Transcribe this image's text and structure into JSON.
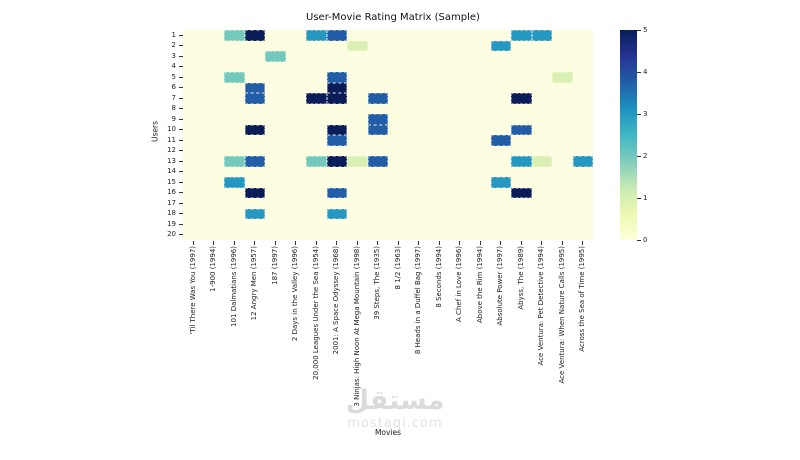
{
  "title": "User-Movie Rating Matrix (Sample)",
  "chart_data": {
    "type": "heatmap",
    "title": "User-Movie Rating Matrix (Sample)",
    "xlabel": "Movies",
    "ylabel": "Users",
    "x_categories": [
      "'Til There Was You (1997)",
      "1-900 (1994)",
      "101 Dalmatians (1996)",
      "12 Angry Men (1957)",
      "187 (1997)",
      "2 Days in the Valley (1996)",
      "20,000 Leagues Under the Sea (1954)",
      "2001: A Space Odyssey (1968)",
      "3 Ninjas: High Noon At Mega Mountain (1998)",
      "39 Steps, The (1935)",
      "8 1/2 (1963)",
      "8 Heads in a Duffel Bag (1997)",
      "8 Seconds (1994)",
      "A Chef in Love (1996)",
      "Above the Rim (1994)",
      "Absolute Power (1997)",
      "Abyss, The (1989)",
      "Ace Ventura: Pet Detective (1994)",
      "Ace Ventura: When Nature Calls (1995)",
      "Across the Sea of Time (1995)"
    ],
    "y_categories": [
      "1",
      "2",
      "3",
      "4",
      "5",
      "6",
      "7",
      "8",
      "9",
      "10",
      "11",
      "12",
      "13",
      "14",
      "15",
      "16",
      "17",
      "18",
      "19",
      "20"
    ],
    "values": [
      [
        0,
        0,
        2,
        5,
        0,
        0,
        3,
        4,
        0,
        0,
        0,
        0,
        0,
        0,
        0,
        0,
        3,
        3,
        0,
        0
      ],
      [
        0,
        0,
        0,
        0,
        0,
        0,
        0,
        0,
        1,
        0,
        0,
        0,
        0,
        0,
        0,
        3,
        0,
        0,
        0,
        0
      ],
      [
        0,
        0,
        0,
        0,
        2,
        0,
        0,
        0,
        0,
        0,
        0,
        0,
        0,
        0,
        0,
        0,
        0,
        0,
        0,
        0
      ],
      [
        0,
        0,
        0,
        0,
        0,
        0,
        0,
        0,
        0,
        0,
        0,
        0,
        0,
        0,
        0,
        0,
        0,
        0,
        0,
        0
      ],
      [
        0,
        0,
        2,
        0,
        0,
        0,
        0,
        4,
        0,
        0,
        0,
        0,
        0,
        0,
        0,
        0,
        0,
        0,
        1,
        0
      ],
      [
        0,
        0,
        0,
        4,
        0,
        0,
        0,
        5,
        0,
        0,
        0,
        0,
        0,
        0,
        0,
        0,
        0,
        0,
        0,
        0
      ],
      [
        0,
        0,
        0,
        4,
        0,
        0,
        5,
        5,
        0,
        4,
        0,
        0,
        0,
        0,
        0,
        0,
        5,
        0,
        0,
        0
      ],
      [
        0,
        0,
        0,
        0,
        0,
        0,
        0,
        0,
        0,
        0,
        0,
        0,
        0,
        0,
        0,
        0,
        0,
        0,
        0,
        0
      ],
      [
        0,
        0,
        0,
        0,
        0,
        0,
        0,
        0,
        0,
        4,
        0,
        0,
        0,
        0,
        0,
        0,
        0,
        0,
        0,
        0
      ],
      [
        0,
        0,
        0,
        5,
        0,
        0,
        0,
        5,
        0,
        4,
        0,
        0,
        0,
        0,
        0,
        0,
        4,
        0,
        0,
        0
      ],
      [
        0,
        0,
        0,
        0,
        0,
        0,
        0,
        4,
        0,
        0,
        0,
        0,
        0,
        0,
        0,
        4,
        0,
        0,
        0,
        0
      ],
      [
        0,
        0,
        0,
        0,
        0,
        0,
        0,
        0,
        0,
        0,
        0,
        0,
        0,
        0,
        0,
        0,
        0,
        0,
        0,
        0
      ],
      [
        0,
        0,
        2,
        4,
        0,
        0,
        2,
        5,
        1,
        4,
        0,
        0,
        0,
        0,
        0,
        0,
        3,
        1,
        0,
        3
      ],
      [
        0,
        0,
        0,
        0,
        0,
        0,
        0,
        0,
        0,
        0,
        0,
        0,
        0,
        0,
        0,
        0,
        0,
        0,
        0,
        0
      ],
      [
        0,
        0,
        3,
        0,
        0,
        0,
        0,
        0,
        0,
        0,
        0,
        0,
        0,
        0,
        0,
        3,
        0,
        0,
        0,
        0
      ],
      [
        0,
        0,
        0,
        5,
        0,
        0,
        0,
        4,
        0,
        0,
        0,
        0,
        0,
        0,
        0,
        0,
        5,
        0,
        0,
        0
      ],
      [
        0,
        0,
        0,
        0,
        0,
        0,
        0,
        0,
        0,
        0,
        0,
        0,
        0,
        0,
        0,
        0,
        0,
        0,
        0,
        0
      ],
      [
        0,
        0,
        0,
        3,
        0,
        0,
        0,
        3,
        0,
        0,
        0,
        0,
        0,
        0,
        0,
        0,
        0,
        0,
        0,
        0
      ],
      [
        0,
        0,
        0,
        0,
        0,
        0,
        0,
        0,
        0,
        0,
        0,
        0,
        0,
        0,
        0,
        0,
        0,
        0,
        0,
        0
      ],
      [
        0,
        0,
        0,
        0,
        0,
        0,
        0,
        0,
        0,
        0,
        0,
        0,
        0,
        0,
        0,
        0,
        0,
        0,
        0,
        0
      ]
    ],
    "vmin": 0,
    "vmax": 5,
    "colormap": "YlGnBu",
    "colorbar_position": "right",
    "colorbar_ticks": [
      "5",
      "4",
      "3",
      "2",
      "1",
      "0"
    ],
    "grid": false,
    "value_colors": [
      "#fdfde2",
      "#d9f0b2",
      "#73cabc",
      "#2498c1",
      "#225ea8",
      "#0a1d58"
    ],
    "colormap_stops": [
      [
        0,
        "#ffffd9"
      ],
      [
        0.125,
        "#edf8b1"
      ],
      [
        0.25,
        "#c7e9b4"
      ],
      [
        0.375,
        "#7fcdbb"
      ],
      [
        0.5,
        "#41b6c4"
      ],
      [
        0.625,
        "#1d91c0"
      ],
      [
        0.75,
        "#225ea8"
      ],
      [
        0.875,
        "#253494"
      ],
      [
        1,
        "#081d58"
      ]
    ]
  },
  "watermark": {
    "arabic_text": "مستقل",
    "latin_text": "mostaql.com"
  }
}
